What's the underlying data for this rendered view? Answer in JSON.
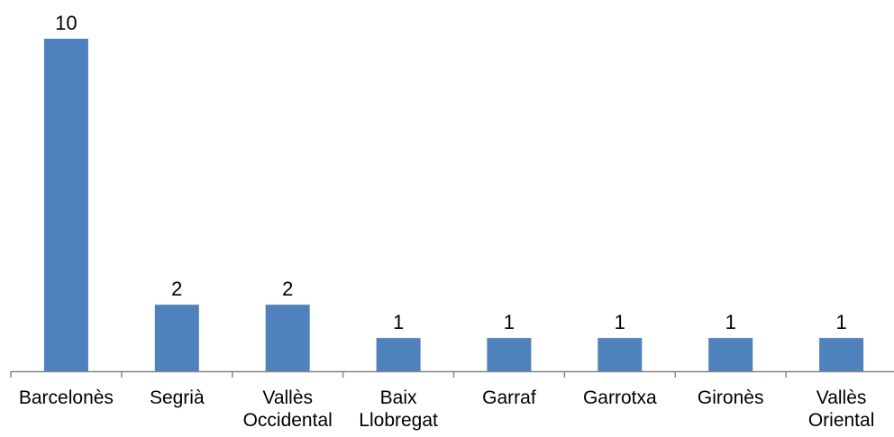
{
  "chart_data": {
    "type": "bar",
    "title": "",
    "xlabel": "",
    "ylabel": "",
    "categories": [
      [
        "Barcelonès"
      ],
      [
        "Segrià"
      ],
      [
        "Vallès",
        "Occidental"
      ],
      [
        "Baix",
        "Llobregat"
      ],
      [
        "Garraf"
      ],
      [
        "Garrotxa"
      ],
      [
        "Gironès"
      ],
      [
        "Vallès",
        "Oriental"
      ]
    ],
    "values": [
      10,
      2,
      2,
      1,
      1,
      1,
      1,
      1
    ],
    "data_labels": [
      "10",
      "2",
      "2",
      "1",
      "1",
      "1",
      "1",
      "1"
    ],
    "ylim": [
      0,
      10
    ],
    "grid": false,
    "legend": "none",
    "colors": {
      "bar": "#4F81BD",
      "axis": "#868686",
      "text": "#000000"
    }
  }
}
